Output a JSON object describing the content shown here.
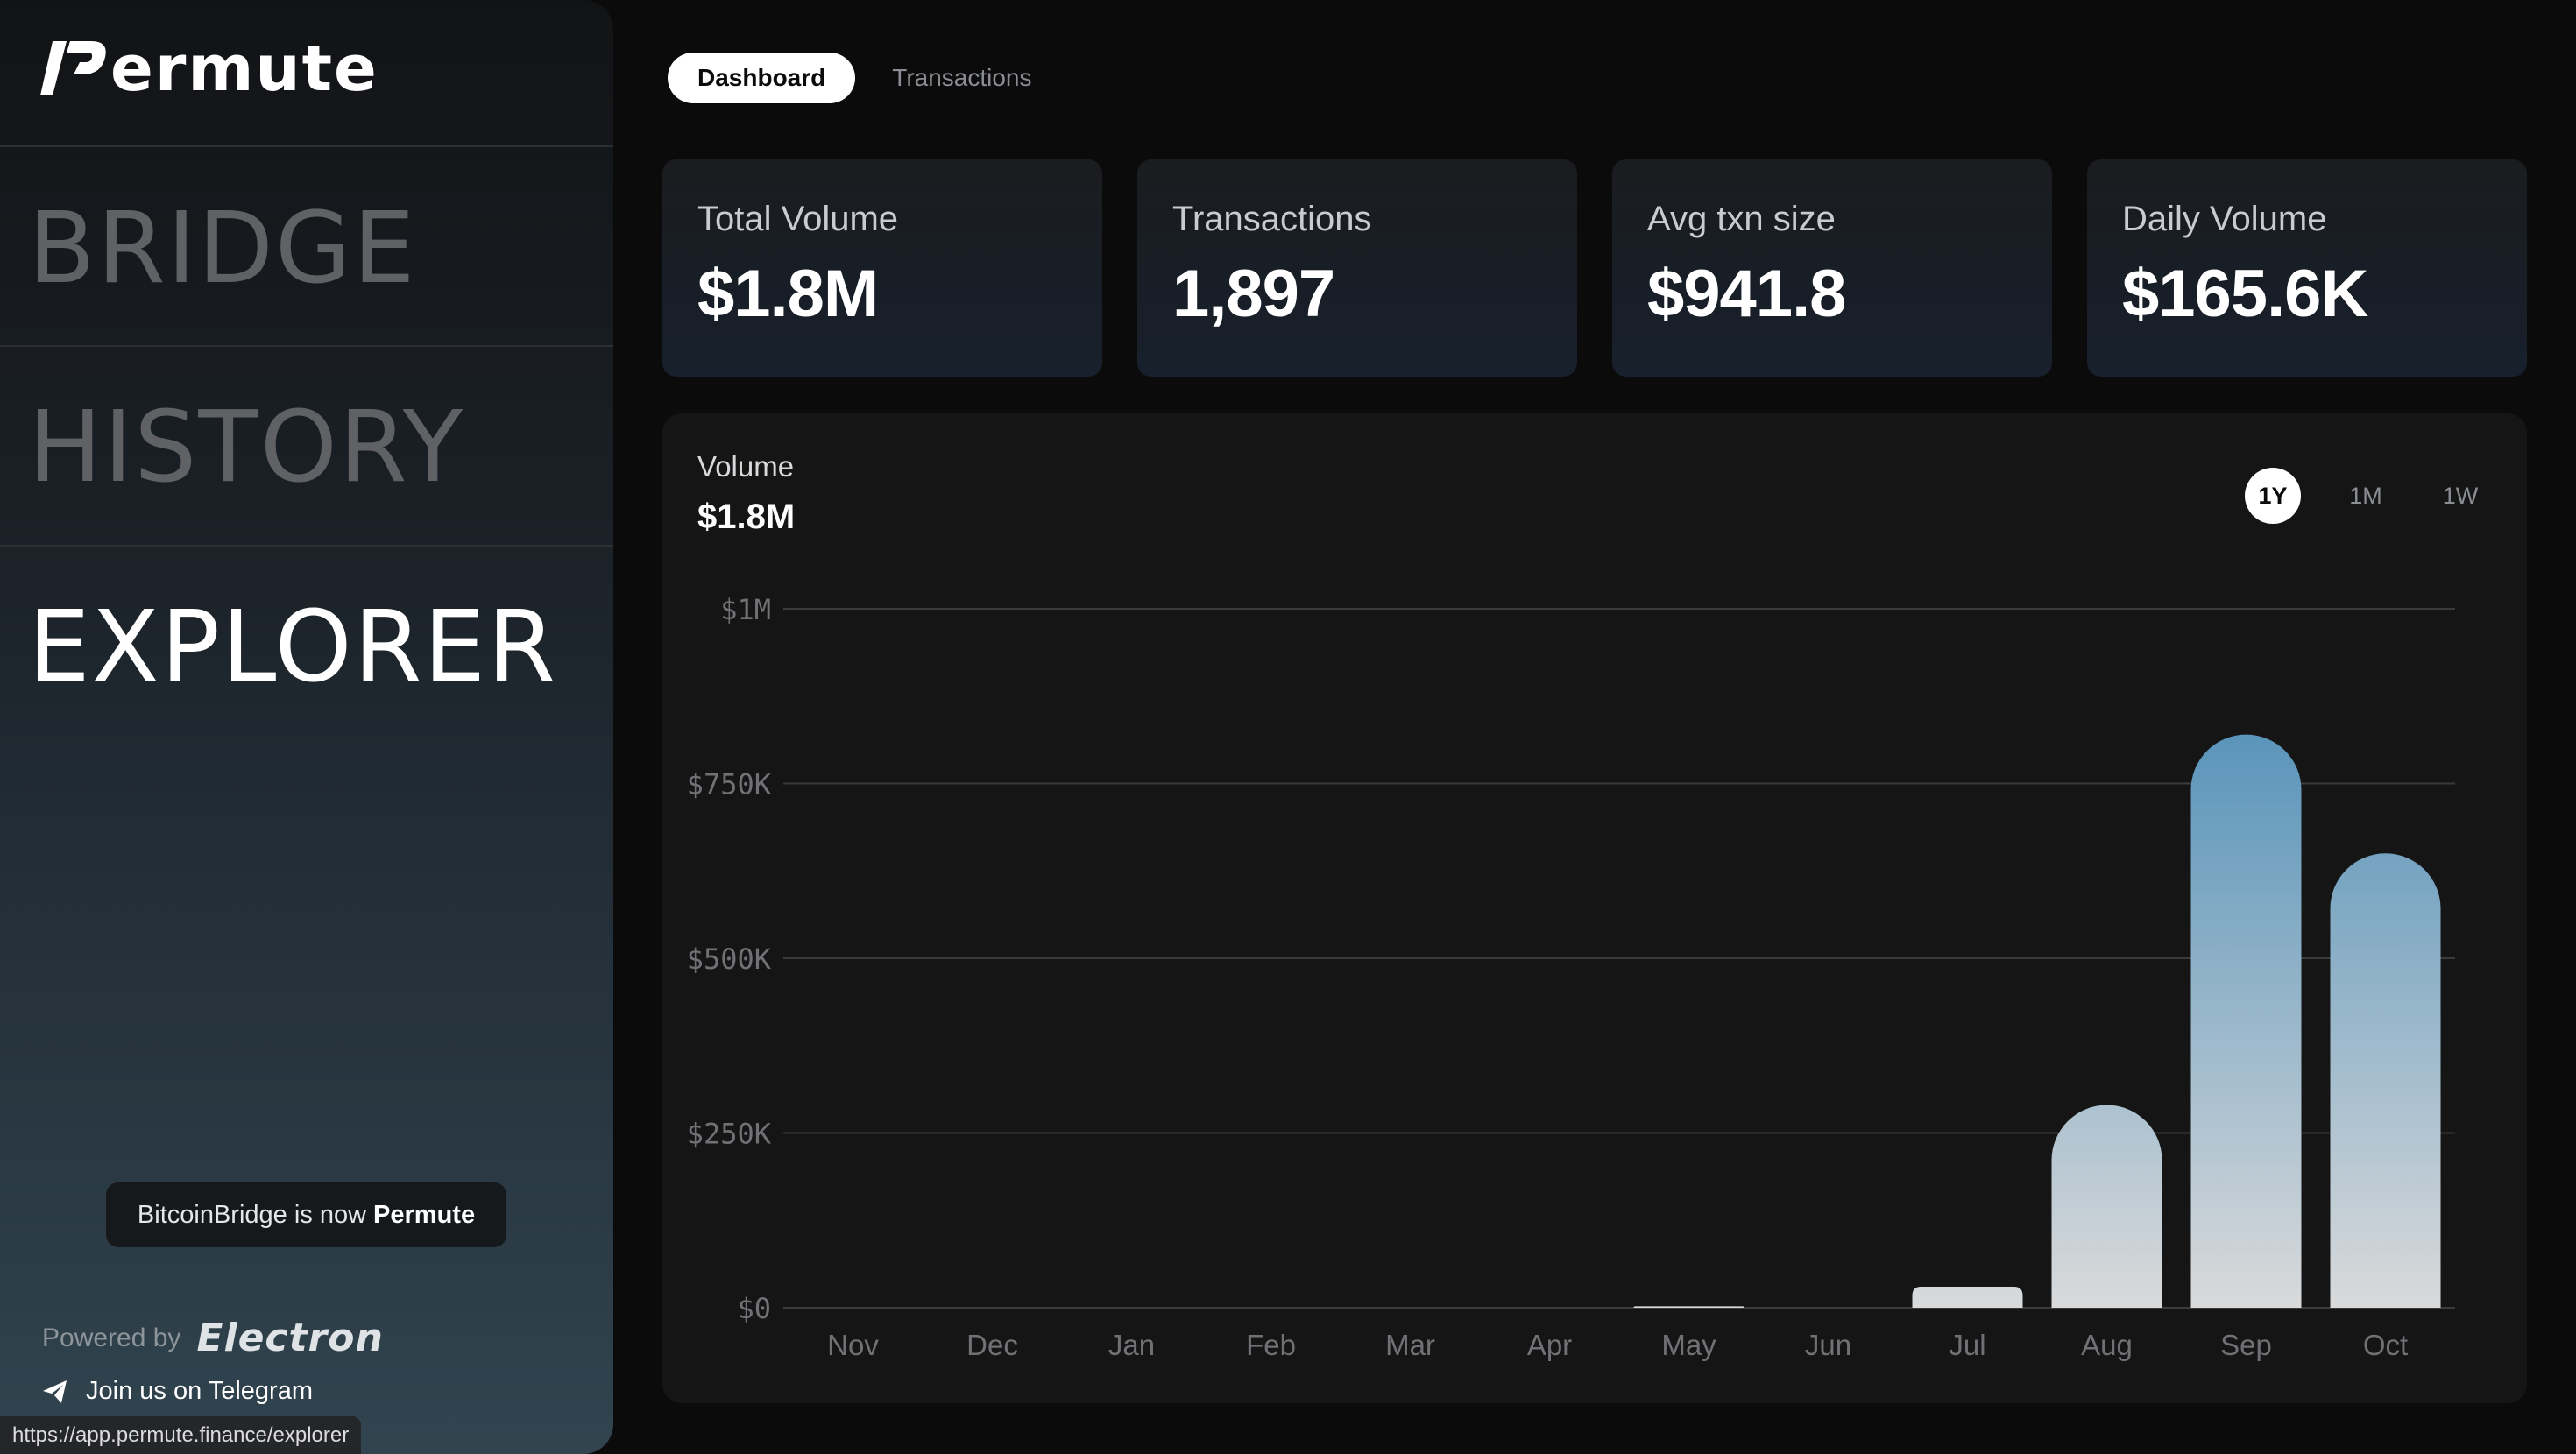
{
  "app": {
    "logo_text": "ermute",
    "status_url": "https://app.permute.finance/explorer"
  },
  "sidebar": {
    "nav": [
      {
        "label": "BRIDGE",
        "active": false
      },
      {
        "label": "HISTORY",
        "active": false
      },
      {
        "label": "EXPLORER",
        "active": true
      }
    ],
    "announcement": {
      "prefix": "BitcoinBridge is now",
      "brand": "Permute"
    },
    "powered_by": {
      "label": "Powered by",
      "brand": "Electron"
    },
    "telegram": {
      "label": "Join us on Telegram",
      "icon": "send-icon"
    }
  },
  "tabs": [
    {
      "label": "Dashboard",
      "active": true
    },
    {
      "label": "Transactions",
      "active": false
    }
  ],
  "stats": [
    {
      "label": "Total Volume",
      "value": "$1.8M"
    },
    {
      "label": "Transactions",
      "value": "1,897"
    },
    {
      "label": "Avg txn size",
      "value": "$941.8"
    },
    {
      "label": "Daily Volume",
      "value": "$165.6K"
    }
  ],
  "chart_panel": {
    "title": "Volume",
    "total": "$1.8M",
    "ranges": [
      {
        "label": "1Y",
        "active": true
      },
      {
        "label": "1M",
        "active": false
      },
      {
        "label": "1W",
        "active": false
      }
    ]
  },
  "chart_data": {
    "type": "bar",
    "categories": [
      "Nov",
      "Dec",
      "Jan",
      "Feb",
      "Mar",
      "Apr",
      "May",
      "Jun",
      "Jul",
      "Aug",
      "Sep",
      "Oct"
    ],
    "values": [
      0,
      0,
      0,
      0,
      0,
      0,
      2000,
      0,
      30000,
      290000,
      820000,
      650000
    ],
    "ylim": [
      0,
      1000000
    ],
    "yticks": [
      0,
      250000,
      500000,
      750000,
      1000000
    ],
    "ytick_labels": [
      "$0",
      "$250K",
      "$500K",
      "$750K",
      "$1M"
    ],
    "grid": true,
    "colors": {
      "bar_top": "#5b95ba",
      "bar_bottom": "#d9dadb",
      "grid": "#3a3b3d",
      "tick": "#6f7175"
    }
  }
}
